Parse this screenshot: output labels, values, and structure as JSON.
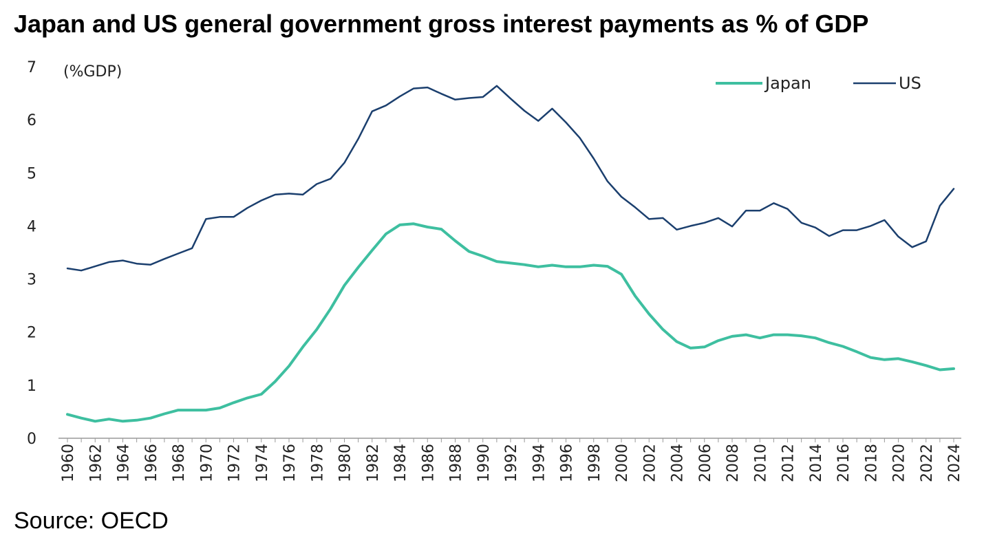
{
  "chart_data": {
    "type": "line",
    "title": "Japan and US general government gross interest payments as % of GDP",
    "unit_label": "(%GDP)",
    "source": "Source: OECD",
    "ylim": [
      0,
      7
    ],
    "yticks": [
      "0",
      "1",
      "2",
      "3",
      "4",
      "5",
      "6",
      "7"
    ],
    "xlabels": [
      "1960",
      "1962",
      "1964",
      "1966",
      "1968",
      "1970",
      "1972",
      "1974",
      "1976",
      "1978",
      "1980",
      "1982",
      "1984",
      "1986",
      "1988",
      "1990",
      "1992",
      "1994",
      "1996",
      "1998",
      "2000",
      "2002",
      "2004",
      "2006",
      "2008",
      "2010",
      "2012",
      "2014",
      "2016",
      "2018",
      "2020",
      "2022",
      "2024"
    ],
    "grid": false,
    "legend_position": "top-right",
    "x": [
      1960,
      1961,
      1962,
      1963,
      1964,
      1965,
      1966,
      1967,
      1968,
      1969,
      1970,
      1971,
      1972,
      1973,
      1974,
      1975,
      1976,
      1977,
      1978,
      1979,
      1980,
      1981,
      1982,
      1983,
      1984,
      1985,
      1986,
      1987,
      1988,
      1989,
      1990,
      1991,
      1992,
      1993,
      1994,
      1995,
      1996,
      1997,
      1998,
      1999,
      2000,
      2001,
      2002,
      2003,
      2004,
      2005,
      2006,
      2007,
      2008,
      2009,
      2010,
      2011,
      2012,
      2013,
      2014,
      2015,
      2016,
      2017,
      2018,
      2019,
      2020,
      2021,
      2022,
      2023,
      2024
    ],
    "series": [
      {
        "name": "Japan",
        "color": "#3ebfa0",
        "values": [
          0.45,
          0.38,
          0.32,
          0.36,
          0.32,
          0.34,
          0.38,
          0.46,
          0.53,
          0.53,
          0.53,
          0.57,
          0.67,
          0.76,
          0.83,
          1.07,
          1.36,
          1.72,
          2.05,
          2.44,
          2.88,
          3.22,
          3.54,
          3.85,
          4.02,
          4.04,
          3.98,
          3.94,
          3.72,
          3.52,
          3.43,
          3.33,
          3.3,
          3.27,
          3.23,
          3.26,
          3.23,
          3.23,
          3.26,
          3.24,
          3.09,
          2.68,
          2.34,
          2.05,
          1.82,
          1.7,
          1.72,
          1.84,
          1.92,
          1.95,
          1.89,
          1.95,
          1.95,
          1.93,
          1.89,
          1.8,
          1.73,
          1.63,
          1.52,
          1.48,
          1.5,
          1.44,
          1.37,
          1.29,
          1.31
        ]
      },
      {
        "name": "US",
        "color": "#1b3f6e",
        "values": [
          3.2,
          3.16,
          3.24,
          3.32,
          3.35,
          3.29,
          3.27,
          3.38,
          3.48,
          3.58,
          4.13,
          4.17,
          4.17,
          4.34,
          4.48,
          4.59,
          4.61,
          4.59,
          4.79,
          4.89,
          5.19,
          5.64,
          6.16,
          6.27,
          6.44,
          6.59,
          6.61,
          6.49,
          6.38,
          6.41,
          6.43,
          6.64,
          6.4,
          6.17,
          5.98,
          6.21,
          5.95,
          5.66,
          5.27,
          4.84,
          4.55,
          4.35,
          4.13,
          4.15,
          3.93,
          4.0,
          4.06,
          4.15,
          3.99,
          4.29,
          4.29,
          4.43,
          4.32,
          4.06,
          3.97,
          3.81,
          3.92,
          3.92,
          4.0,
          4.11,
          3.8,
          3.6,
          3.71,
          4.38,
          4.7
        ]
      }
    ]
  }
}
